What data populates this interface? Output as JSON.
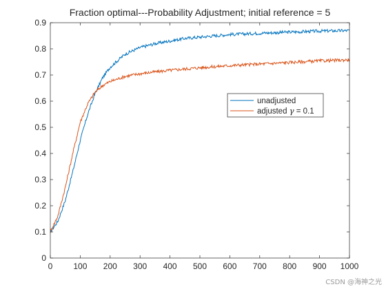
{
  "chart_data": {
    "type": "line",
    "title": "Fraction optimal---Probability Adjustment; initial reference = 5",
    "xlabel": "",
    "ylabel": "",
    "xlim": [
      0,
      1000
    ],
    "ylim": [
      0,
      0.9
    ],
    "xticks": [
      0,
      100,
      200,
      300,
      400,
      500,
      600,
      700,
      800,
      900,
      1000
    ],
    "yticks": [
      0,
      0.1,
      0.2,
      0.3,
      0.4,
      0.5,
      0.6,
      0.7,
      0.8,
      0.9
    ],
    "grid": false,
    "legend_position": "center-right",
    "series": [
      {
        "name": "unadjusted",
        "color": "#0072BD",
        "x": [
          0,
          25,
          50,
          75,
          100,
          125,
          150,
          175,
          200,
          250,
          300,
          350,
          400,
          450,
          500,
          550,
          600,
          650,
          700,
          750,
          800,
          850,
          900,
          950,
          1000
        ],
        "y": [
          0.1,
          0.14,
          0.22,
          0.33,
          0.45,
          0.55,
          0.63,
          0.69,
          0.73,
          0.78,
          0.805,
          0.82,
          0.83,
          0.84,
          0.845,
          0.85,
          0.855,
          0.857,
          0.86,
          0.862,
          0.864,
          0.866,
          0.868,
          0.869,
          0.87
        ]
      },
      {
        "name": "adjusted γ = 0.1",
        "color": "#D95319",
        "x": [
          0,
          25,
          50,
          75,
          100,
          125,
          150,
          175,
          200,
          250,
          300,
          350,
          400,
          450,
          500,
          550,
          600,
          650,
          700,
          750,
          800,
          850,
          900,
          950,
          1000
        ],
        "y": [
          0.1,
          0.16,
          0.27,
          0.4,
          0.52,
          0.59,
          0.635,
          0.66,
          0.675,
          0.695,
          0.705,
          0.712,
          0.718,
          0.723,
          0.728,
          0.732,
          0.736,
          0.739,
          0.742,
          0.745,
          0.748,
          0.751,
          0.754,
          0.756,
          0.758
        ]
      }
    ],
    "legend": {
      "entries": [
        {
          "label_prefix": "adjusted ",
          "symbol": "γ",
          "label_suffix": " = 0.1"
        }
      ]
    }
  },
  "watermark": "CSDN @海神之光"
}
